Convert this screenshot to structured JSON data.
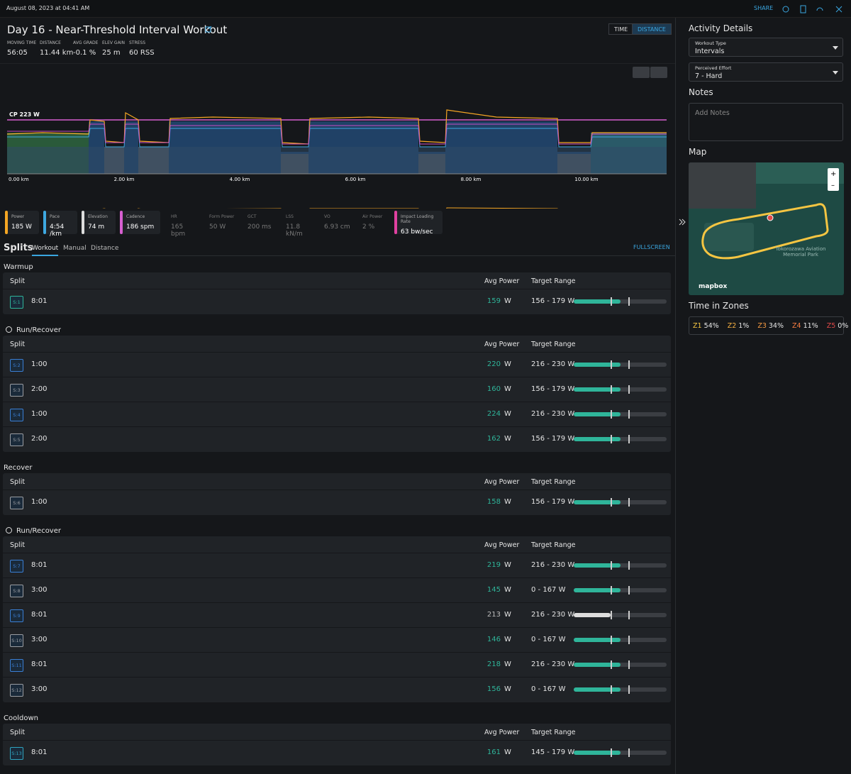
{
  "header": {
    "date": "August 08, 2023 at 04:41 AM",
    "share": "SHARE"
  },
  "workout": {
    "title": "Day 16 - Near-Threshold Interval Workout",
    "toggle": [
      "TIME",
      "DISTANCE"
    ],
    "stats": [
      {
        "label": "MOVING TIME",
        "value": "56:05"
      },
      {
        "label": "DISTANCE",
        "value": "11.44 km"
      },
      {
        "label": "AVG GRADE",
        "value": "-0.1 %"
      },
      {
        "label": "ELEV GAIN",
        "value": "25 m"
      },
      {
        "label": "STRESS",
        "value": "60 RSS"
      }
    ]
  },
  "chart": {
    "cp_label": "CP 223 W",
    "x_labels": [
      "0.00 km",
      "2.00 km",
      "4.00 km",
      "6.00 km",
      "8.00 km",
      "10.00 km"
    ]
  },
  "metrics": [
    {
      "label": "Power",
      "value": "185 W",
      "active": true,
      "color": "#f5a623"
    },
    {
      "label": "Pace",
      "value": "4:54 /km",
      "active": true,
      "color": "#3ea8e0"
    },
    {
      "label": "Elevation",
      "value": "74 m",
      "active": true,
      "color": "#dddddd"
    },
    {
      "label": "Cadence",
      "value": "186 spm",
      "active": true,
      "color": "#d75fd0"
    },
    {
      "label": "HR",
      "value": "165 bpm",
      "active": false
    },
    {
      "label": "Form Power",
      "value": "50 W",
      "active": false
    },
    {
      "label": "GCT",
      "value": "200 ms",
      "active": false
    },
    {
      "label": "LSS",
      "value": "11.8 kN/m",
      "active": false
    },
    {
      "label": "VO",
      "value": "6.93 cm",
      "active": false
    },
    {
      "label": "Air Power",
      "value": "2 %",
      "active": false
    },
    {
      "label": "Impact Loading Rate",
      "value": "63 bw/sec",
      "active": true,
      "color": "#e040a0"
    }
  ],
  "splits": {
    "title": "Splits",
    "tabs": [
      "Workout",
      "Manual",
      "Distance"
    ],
    "fullscreen": "FULLSCREEN",
    "columns": [
      "Split",
      "Avg Power",
      "Target Range"
    ],
    "unit": "W",
    "sections": [
      {
        "title": "Warmup",
        "repeat": false,
        "rows": [
          {
            "split": "S:1",
            "time": "8:01",
            "avg_power": 159,
            "target": "156 - 179 W",
            "badge_color": "#2fb59a",
            "in_range": true
          }
        ]
      },
      {
        "title": "Run/Recover",
        "repeat": true,
        "rows": [
          {
            "split": "S:2",
            "time": "1:00",
            "avg_power": 220,
            "target": "216 - 230 W",
            "badge_color": "#3a7fd5",
            "in_range": true
          },
          {
            "split": "S:3",
            "time": "2:00",
            "avg_power": 160,
            "target": "156 - 179 W",
            "badge_color": "#9a9da2",
            "in_range": true
          },
          {
            "split": "S:4",
            "time": "1:00",
            "avg_power": 224,
            "target": "216 - 230 W",
            "badge_color": "#3a7fd5",
            "in_range": true
          },
          {
            "split": "S:5",
            "time": "2:00",
            "avg_power": 162,
            "target": "156 - 179 W",
            "badge_color": "#9a9da2",
            "in_range": true
          }
        ]
      },
      {
        "title": "Recover",
        "repeat": false,
        "rows": [
          {
            "split": "S:6",
            "time": "1:00",
            "avg_power": 158,
            "target": "156 - 179 W",
            "badge_color": "#9a9da2",
            "in_range": true
          }
        ]
      },
      {
        "title": "Run/Recover",
        "repeat": true,
        "rows": [
          {
            "split": "S:7",
            "time": "8:01",
            "avg_power": 219,
            "target": "216 - 230 W",
            "badge_color": "#3a7fd5",
            "in_range": true
          },
          {
            "split": "S:8",
            "time": "3:00",
            "avg_power": 145,
            "target": "0 - 167 W",
            "badge_color": "#9a9da2",
            "in_range": true
          },
          {
            "split": "S:9",
            "time": "8:01",
            "avg_power": 213,
            "target": "216 - 230 W",
            "badge_color": "#3a7fd5",
            "in_range": false
          },
          {
            "split": "S:10",
            "time": "3:00",
            "avg_power": 146,
            "target": "0 - 167 W",
            "badge_color": "#9a9da2",
            "in_range": true
          },
          {
            "split": "S:11",
            "time": "8:01",
            "avg_power": 218,
            "target": "216 - 230 W",
            "badge_color": "#3a7fd5",
            "in_range": true
          },
          {
            "split": "S:12",
            "time": "3:00",
            "avg_power": 156,
            "target": "0 - 167 W",
            "badge_color": "#9a9da2",
            "in_range": true
          }
        ]
      },
      {
        "title": "Cooldown",
        "repeat": false,
        "rows": [
          {
            "split": "S:13",
            "time": "8:01",
            "avg_power": 161,
            "target": "145 - 179 W",
            "badge_color": "#2fa5c0",
            "in_range": true
          }
        ]
      }
    ]
  },
  "sidebar": {
    "title": "Activity Details",
    "workout_type": {
      "label": "Workout Type",
      "value": "Intervals"
    },
    "effort": {
      "label": "Perceived Effort",
      "value": "7 - Hard"
    },
    "notes_title": "Notes",
    "notes_placeholder": "Add Notes",
    "map_title": "Map",
    "map_place": "Tokorozawa Aviation Memorial Park",
    "map_brand": "mapbox",
    "zones_title": "Time in Zones",
    "zones": [
      {
        "name": "Z1",
        "value": "54%",
        "color": "#f5c542"
      },
      {
        "name": "Z2",
        "value": "1%",
        "color": "#f5b042"
      },
      {
        "name": "Z3",
        "value": "34%",
        "color": "#f59a42"
      },
      {
        "name": "Z4",
        "value": "11%",
        "color": "#f57c42"
      },
      {
        "name": "Z5",
        "value": "0%",
        "color": "#e04848"
      }
    ]
  }
}
